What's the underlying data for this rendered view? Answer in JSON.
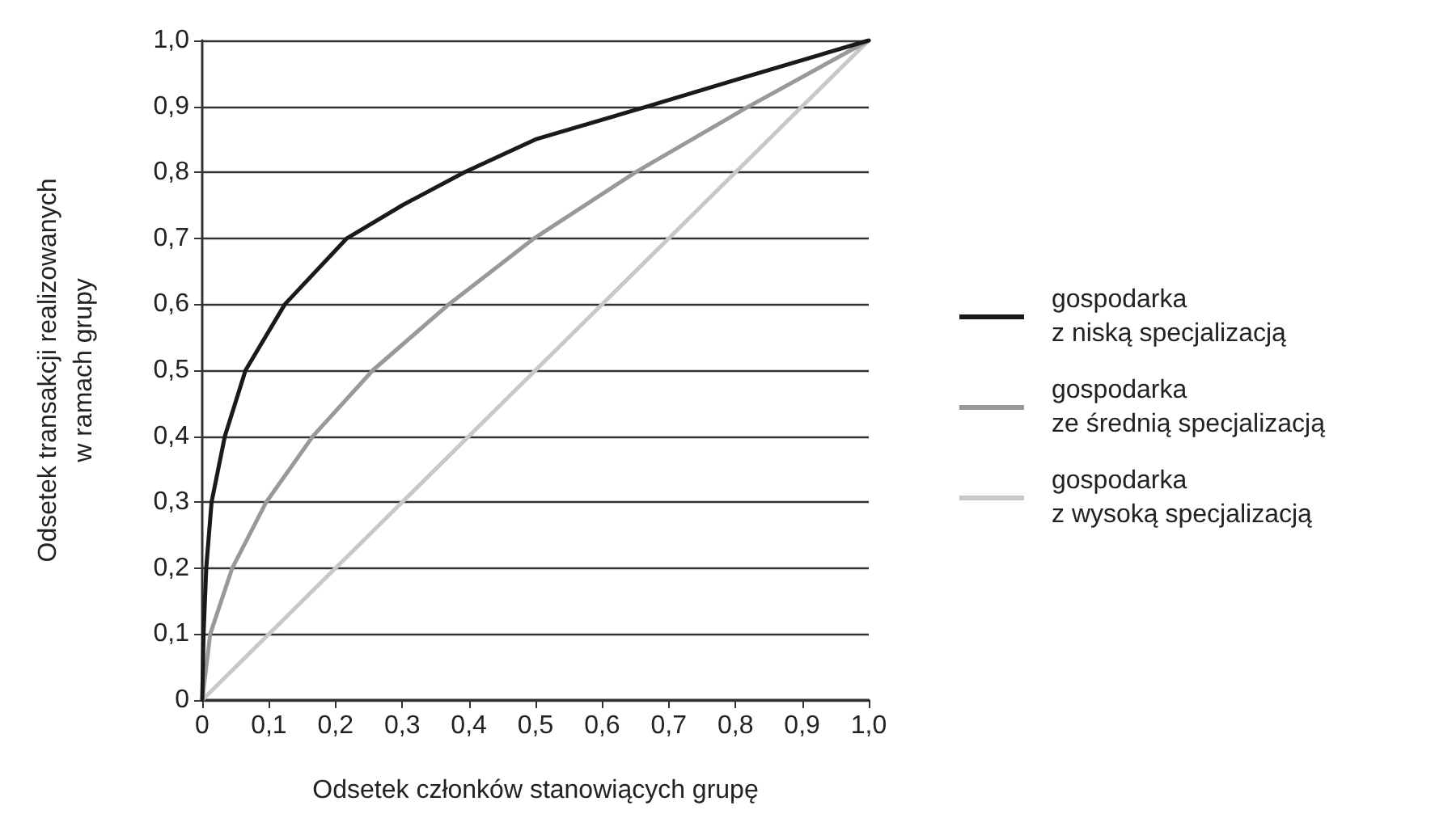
{
  "chart_data": {
    "type": "line",
    "xlabel": "Odsetek członków stanowiących grupę",
    "ylabel": "Odsetek transakcji realizowanych\nw ramach grupy",
    "xlim": [
      0,
      1
    ],
    "ylim": [
      0,
      1
    ],
    "xticks": [
      0,
      {
        "value": 0.1,
        "label": "0,1"
      },
      {
        "value": 0.2,
        "label": "0,2"
      },
      {
        "value": 0.3,
        "label": "0,3"
      },
      {
        "value": 0.4,
        "label": "0,4"
      },
      {
        "value": 0.5,
        "label": "0,5"
      },
      {
        "value": 0.6,
        "label": "0,6"
      },
      {
        "value": 0.7,
        "label": "0,7"
      },
      {
        "value": 0.8,
        "label": "0,8"
      },
      {
        "value": 0.9,
        "label": "0,9"
      },
      {
        "value": 1,
        "label": "1,0"
      }
    ],
    "yticks": [
      0,
      {
        "value": 0.1,
        "label": "0,1"
      },
      {
        "value": 0.2,
        "label": "0,2"
      },
      {
        "value": 0.3,
        "label": "0,3"
      },
      {
        "value": 0.4,
        "label": "0,4"
      },
      {
        "value": 0.5,
        "label": "0,5"
      },
      {
        "value": 0.6,
        "label": "0,6"
      },
      {
        "value": 0.7,
        "label": "0,7"
      },
      {
        "value": 0.8,
        "label": "0,8"
      },
      {
        "value": 0.9,
        "label": "0,9"
      },
      {
        "value": 1,
        "label": "1,0"
      }
    ],
    "grid": "y",
    "legend": "right",
    "marker": "none",
    "line_style": "solid",
    "series": [
      {
        "name": "gospodarka\nz niską specjalizacją",
        "color": "#1a1a1a",
        "x": [
          0,
          0.002,
          0.006,
          0.014,
          0.034,
          0.065,
          0.124,
          0.217,
          0.3,
          0.393,
          0.5,
          0.668,
          0.8,
          1
        ],
        "values": [
          0,
          0.1,
          0.2,
          0.3,
          0.4,
          0.5,
          0.6,
          0.7,
          0.75,
          0.8,
          0.85,
          0.9,
          0.94,
          1
        ]
      },
      {
        "name": "gospodarka\nze średnią specjalizacją",
        "color": "#999999",
        "x": [
          0,
          0.012,
          0.045,
          0.096,
          0.166,
          0.256,
          0.37,
          0.498,
          0.65,
          0.82,
          1
        ],
        "values": [
          0,
          0.1,
          0.2,
          0.3,
          0.4,
          0.5,
          0.6,
          0.7,
          0.8,
          0.9,
          1
        ]
      },
      {
        "name": "gospodarka\nz wysoką specjalizacją",
        "color": "#c8c8c8",
        "x": [
          0,
          1
        ],
        "values": [
          0,
          1
        ]
      }
    ]
  }
}
